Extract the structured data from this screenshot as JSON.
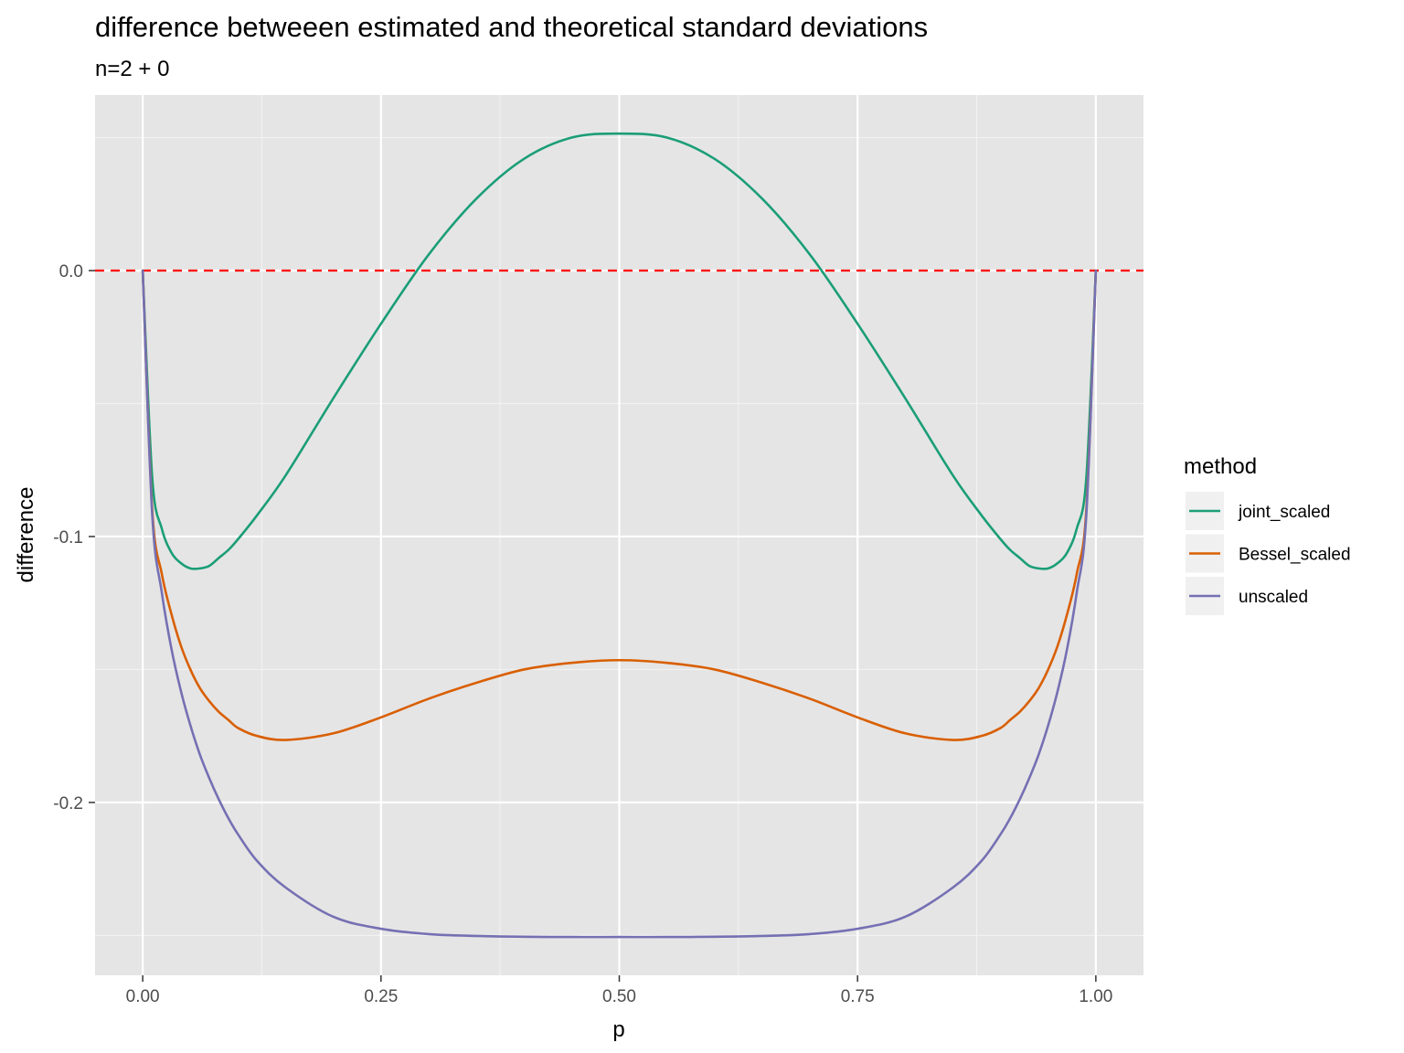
{
  "chart_data": {
    "type": "line",
    "title": "difference betweeen estimated and theoretical standard deviations",
    "subtitle": "n=2 + 0",
    "xlabel": "p",
    "ylabel": "difference",
    "xlim": [
      -0.05,
      1.05
    ],
    "ylim": [
      -0.265,
      0.066
    ],
    "x_ticks": [
      0.0,
      0.25,
      0.5,
      0.75,
      1.0
    ],
    "x_tick_labels": [
      "0.00",
      "0.25",
      "0.50",
      "0.75",
      "1.00"
    ],
    "y_ticks": [
      0.0,
      -0.1,
      -0.2
    ],
    "y_tick_labels": [
      "0.0",
      "-0.1",
      "-0.2"
    ],
    "grid": true,
    "legend": {
      "title": "method",
      "position": "right"
    },
    "reference_line": {
      "y": 0.0,
      "style": "dashed",
      "color": "#ff0000"
    },
    "series": [
      {
        "name": "joint_scaled",
        "color": "#1b9e77",
        "x": [
          0.0,
          0.01,
          0.02,
          0.03,
          0.04,
          0.05,
          0.06,
          0.07,
          0.08,
          0.09,
          0.1,
          0.12,
          0.15,
          0.2,
          0.25,
          0.3,
          0.35,
          0.4,
          0.45,
          0.5,
          0.55,
          0.6,
          0.65,
          0.7,
          0.75,
          0.8,
          0.85,
          0.88,
          0.9,
          0.91,
          0.92,
          0.93,
          0.94,
          0.95,
          0.96,
          0.97,
          0.98,
          0.99,
          1.0
        ],
        "y": [
          0.0,
          -0.078,
          -0.097,
          -0.106,
          -0.11,
          -0.112,
          -0.112,
          -0.111,
          -0.108,
          -0.105,
          -0.101,
          -0.092,
          -0.077,
          -0.048,
          -0.02,
          0.006,
          0.027,
          0.042,
          0.05,
          0.0515,
          0.05,
          0.042,
          0.027,
          0.006,
          -0.02,
          -0.048,
          -0.077,
          -0.092,
          -0.101,
          -0.105,
          -0.108,
          -0.111,
          -0.112,
          -0.112,
          -0.11,
          -0.106,
          -0.097,
          -0.078,
          0.0
        ]
      },
      {
        "name": "Bessel_scaled",
        "color": "#d95f02",
        "x": [
          0.0,
          0.01,
          0.02,
          0.03,
          0.04,
          0.05,
          0.06,
          0.07,
          0.08,
          0.09,
          0.1,
          0.12,
          0.15,
          0.2,
          0.25,
          0.3,
          0.35,
          0.4,
          0.45,
          0.5,
          0.55,
          0.6,
          0.65,
          0.7,
          0.75,
          0.8,
          0.85,
          0.88,
          0.9,
          0.91,
          0.92,
          0.93,
          0.94,
          0.95,
          0.96,
          0.97,
          0.98,
          0.99,
          1.0
        ],
        "y": [
          0.0,
          -0.09,
          -0.114,
          -0.129,
          -0.141,
          -0.15,
          -0.157,
          -0.162,
          -0.166,
          -0.169,
          -0.172,
          -0.175,
          -0.1765,
          -0.174,
          -0.168,
          -0.161,
          -0.155,
          -0.15,
          -0.1475,
          -0.1465,
          -0.1475,
          -0.15,
          -0.155,
          -0.161,
          -0.168,
          -0.174,
          -0.1765,
          -0.175,
          -0.172,
          -0.169,
          -0.166,
          -0.162,
          -0.157,
          -0.15,
          -0.141,
          -0.129,
          -0.114,
          -0.09,
          0.0
        ]
      },
      {
        "name": "unscaled",
        "color": "#7570b3",
        "x": [
          0.0,
          0.01,
          0.02,
          0.03,
          0.04,
          0.05,
          0.06,
          0.07,
          0.08,
          0.09,
          0.1,
          0.12,
          0.15,
          0.2,
          0.25,
          0.3,
          0.35,
          0.4,
          0.45,
          0.5,
          0.55,
          0.6,
          0.65,
          0.7,
          0.75,
          0.8,
          0.85,
          0.88,
          0.9,
          0.91,
          0.92,
          0.93,
          0.94,
          0.95,
          0.96,
          0.97,
          0.98,
          0.99,
          1.0
        ],
        "y": [
          0.0,
          -0.092,
          -0.121,
          -0.142,
          -0.158,
          -0.171,
          -0.182,
          -0.191,
          -0.199,
          -0.206,
          -0.212,
          -0.222,
          -0.232,
          -0.243,
          -0.2475,
          -0.2495,
          -0.2502,
          -0.2505,
          -0.2506,
          -0.2506,
          -0.2506,
          -0.2505,
          -0.2502,
          -0.2495,
          -0.2475,
          -0.243,
          -0.232,
          -0.222,
          -0.212,
          -0.206,
          -0.199,
          -0.191,
          -0.182,
          -0.171,
          -0.158,
          -0.142,
          -0.121,
          -0.092,
          0.0
        ]
      }
    ]
  }
}
